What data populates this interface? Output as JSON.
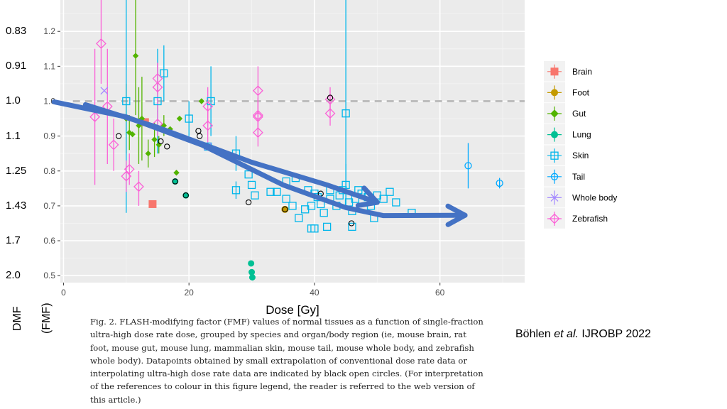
{
  "dmf": {
    "title": "DMF",
    "subtitle": "(FMF)",
    "labels": [
      {
        "text": "0.83",
        "fmf": 1.2
      },
      {
        "text": "0.91",
        "fmf": 1.1
      },
      {
        "text": "1.0",
        "fmf": 1.0
      },
      {
        "text": "1.1",
        "fmf": 0.9
      },
      {
        "text": "1.25",
        "fmf": 0.8
      },
      {
        "text": "1.43",
        "fmf": 0.7
      },
      {
        "text": "1.7",
        "fmf": 0.6
      },
      {
        "text": "2.0",
        "fmf": 0.5
      }
    ]
  },
  "caption": "Fig. 2. FLASH-modifying factor (FMF) values of normal tissues as a function of single-fraction ultra-high dose rate dose, grouped by species and organ/body region (ie, mouse brain, rat foot, mouse gut, mouse lung, mammalian skin, mouse tail, mouse whole body, and zebrafish whole body). Datapoints obtained by small extrapolation of conventional dose rate data or interpolating ultra-high dose rate data are indicated by black open circles. (For interpretation of the references to colour in this figure legend, the reader is referred to the web version of this article.)",
  "citation": {
    "author": "Böhlen ",
    "etal": "et al.",
    "journal": " IJROBP 2022"
  },
  "chart_data": {
    "type": "scatter",
    "xlabel": "Dose [Gy]",
    "ylabel": "",
    "xlim": [
      -0.5,
      73.5
    ],
    "ylim": [
      0.48,
      1.29
    ],
    "xticks": [
      0,
      20,
      40,
      60
    ],
    "yticks": [
      0.5,
      0.6,
      0.7,
      0.8,
      0.9,
      1.0,
      1.1,
      1.2
    ],
    "ytick_labels": [
      "0.5",
      "0.6",
      "0.7",
      "0.8",
      "0.9",
      "1.0",
      "1.1",
      "1.2"
    ],
    "grid": true,
    "reference_line": 1.0,
    "legend_position": "right",
    "colors": {
      "Brain": "#F8766D",
      "Foot": "#C49A00",
      "Gut": "#53B400",
      "Lung": "#00C094",
      "Skin": "#00B6EB",
      "Tail": "#00A9FF",
      "Whole body": "#A58AFF",
      "Zebrafish": "#FB61D7"
    },
    "series": [
      {
        "name": "Brain",
        "marker": "square",
        "points": [
          {
            "x": 14.2,
            "y": 0.705
          },
          {
            "x": 13.0,
            "y": 0.94
          }
        ]
      },
      {
        "name": "Foot",
        "marker": "circle",
        "points": [
          {
            "x": 35.3,
            "y": 0.69
          }
        ]
      },
      {
        "name": "Gut",
        "marker": "diamond",
        "points": [
          {
            "x": 11.5,
            "y": 1.13,
            "lo": 0.96,
            "hi": 1.3
          },
          {
            "x": 10.0,
            "y": 0.95,
            "lo": 0.85,
            "hi": 1.05
          },
          {
            "x": 10.5,
            "y": 0.91,
            "lo": 0.86,
            "hi": 0.96
          },
          {
            "x": 12.0,
            "y": 0.93,
            "lo": 0.82,
            "hi": 1.04
          },
          {
            "x": 12.5,
            "y": 0.95,
            "lo": 0.83,
            "hi": 1.07
          },
          {
            "x": 13.5,
            "y": 0.85,
            "lo": 0.81,
            "hi": 0.89
          },
          {
            "x": 14.5,
            "y": 0.89,
            "lo": 0.84,
            "hi": 0.94
          },
          {
            "x": 15.2,
            "y": 0.875,
            "lo": 0.85,
            "hi": 0.9
          },
          {
            "x": 16.0,
            "y": 0.93,
            "lo": 0.9,
            "hi": 0.96
          },
          {
            "x": 17.0,
            "y": 0.92
          },
          {
            "x": 18.5,
            "y": 0.95
          },
          {
            "x": 18.0,
            "y": 0.795
          },
          {
            "x": 22.0,
            "y": 1.0
          },
          {
            "x": 11.0,
            "y": 0.905
          }
        ]
      },
      {
        "name": "Lung",
        "marker": "circle",
        "points": [
          {
            "x": 17.8,
            "y": 0.77
          },
          {
            "x": 19.5,
            "y": 0.73
          },
          {
            "x": 29.9,
            "y": 0.535
          },
          {
            "x": 30.0,
            "y": 0.51
          },
          {
            "x": 30.1,
            "y": 0.495
          }
        ]
      },
      {
        "name": "Skin",
        "marker": "square",
        "points": [
          {
            "x": 10.0,
            "y": 1.0,
            "lo": 0.68,
            "hi": 1.3
          },
          {
            "x": 15.0,
            "y": 1.0,
            "lo": 0.85,
            "hi": 1.15
          },
          {
            "x": 16.0,
            "y": 1.08,
            "lo": 1.0,
            "hi": 1.16
          },
          {
            "x": 20.0,
            "y": 0.95,
            "lo": 0.9,
            "hi": 1.0
          },
          {
            "x": 23.5,
            "y": 1.0,
            "lo": 0.9,
            "hi": 1.1
          },
          {
            "x": 23.0,
            "y": 0.87
          },
          {
            "x": 27.5,
            "y": 0.85,
            "lo": 0.8,
            "hi": 0.9
          },
          {
            "x": 27.5,
            "y": 0.745,
            "lo": 0.72,
            "hi": 0.77
          },
          {
            "x": 29.5,
            "y": 0.79
          },
          {
            "x": 30.0,
            "y": 0.76
          },
          {
            "x": 30.5,
            "y": 0.73
          },
          {
            "x": 33.0,
            "y": 0.74
          },
          {
            "x": 34.0,
            "y": 0.74
          },
          {
            "x": 35.5,
            "y": 0.72
          },
          {
            "x": 35.5,
            "y": 0.77
          },
          {
            "x": 36.5,
            "y": 0.7
          },
          {
            "x": 37.0,
            "y": 0.78
          },
          {
            "x": 37.5,
            "y": 0.665
          },
          {
            "x": 38.5,
            "y": 0.69
          },
          {
            "x": 39.0,
            "y": 0.745
          },
          {
            "x": 39.5,
            "y": 0.7
          },
          {
            "x": 40.0,
            "y": 0.735
          },
          {
            "x": 40.5,
            "y": 0.725
          },
          {
            "x": 41.0,
            "y": 0.705
          },
          {
            "x": 41.5,
            "y": 0.68
          },
          {
            "x": 42.5,
            "y": 0.745
          },
          {
            "x": 42.5,
            "y": 0.72
          },
          {
            "x": 43.5,
            "y": 0.7
          },
          {
            "x": 44.0,
            "y": 0.73
          },
          {
            "x": 44.5,
            "y": 0.745
          },
          {
            "x": 45.0,
            "y": 0.76,
            "lo": 0.7,
            "hi": 0.82
          },
          {
            "x": 45.0,
            "y": 0.965,
            "lo": 0.7,
            "hi": 1.3
          },
          {
            "x": 45.5,
            "y": 0.71
          },
          {
            "x": 46.0,
            "y": 0.685
          },
          {
            "x": 46.5,
            "y": 0.72
          },
          {
            "x": 47.0,
            "y": 0.745
          },
          {
            "x": 47.5,
            "y": 0.735
          },
          {
            "x": 48.5,
            "y": 0.725
          },
          {
            "x": 49.0,
            "y": 0.7
          },
          {
            "x": 50.0,
            "y": 0.73
          },
          {
            "x": 49.5,
            "y": 0.665
          },
          {
            "x": 51.0,
            "y": 0.72
          },
          {
            "x": 53.0,
            "y": 0.71
          },
          {
            "x": 55.5,
            "y": 0.68
          },
          {
            "x": 52.0,
            "y": 0.74
          },
          {
            "x": 46.0,
            "y": 0.64
          },
          {
            "x": 40.0,
            "y": 0.635
          },
          {
            "x": 39.5,
            "y": 0.635
          },
          {
            "x": 42.0,
            "y": 0.64
          }
        ]
      },
      {
        "name": "Tail",
        "marker": "circle",
        "points": [
          {
            "x": 64.5,
            "y": 0.815,
            "lo": 0.75,
            "hi": 0.88
          },
          {
            "x": 69.5,
            "y": 0.765,
            "lo": 0.75,
            "hi": 0.78
          }
        ]
      },
      {
        "name": "Whole body",
        "marker": "cross",
        "points": [
          {
            "x": 6.5,
            "y": 1.03
          },
          {
            "x": 23.0,
            "y": 0.87
          }
        ]
      },
      {
        "name": "Zebrafish",
        "marker": "diamond",
        "points": [
          {
            "x": 5.0,
            "y": 0.955,
            "lo": 0.76,
            "hi": 1.15
          },
          {
            "x": 6.0,
            "y": 1.165,
            "lo": 1.05,
            "hi": 1.29
          },
          {
            "x": 7.0,
            "y": 0.985,
            "lo": 0.82,
            "hi": 1.15
          },
          {
            "x": 8.0,
            "y": 0.875,
            "lo": 0.8,
            "hi": 0.95
          },
          {
            "x": 10.0,
            "y": 0.785,
            "lo": 0.74,
            "hi": 0.83
          },
          {
            "x": 10.5,
            "y": 0.805,
            "lo": 0.76,
            "hi": 0.85
          },
          {
            "x": 12.0,
            "y": 0.755,
            "lo": 0.7,
            "hi": 0.8
          },
          {
            "x": 15.0,
            "y": 1.065,
            "lo": 1.02,
            "hi": 1.11
          },
          {
            "x": 15.0,
            "y": 1.04,
            "lo": 0.97,
            "hi": 1.11
          },
          {
            "x": 15.0,
            "y": 0.935,
            "lo": 0.9,
            "hi": 0.97
          },
          {
            "x": 23.0,
            "y": 0.985,
            "lo": 0.93,
            "hi": 1.04
          },
          {
            "x": 23.0,
            "y": 0.93,
            "lo": 0.88,
            "hi": 0.98
          },
          {
            "x": 31.0,
            "y": 1.03,
            "lo": 0.9,
            "hi": 1.1
          },
          {
            "x": 31.0,
            "y": 0.96,
            "lo": 0.92,
            "hi": 1.0
          },
          {
            "x": 31.0,
            "y": 0.955,
            "lo": 0.9,
            "hi": 1.01
          },
          {
            "x": 31.0,
            "y": 0.91,
            "lo": 0.87,
            "hi": 0.95
          },
          {
            "x": 42.5,
            "y": 1.005,
            "lo": 0.97,
            "hi": 1.04
          },
          {
            "x": 42.5,
            "y": 0.965,
            "lo": 0.93,
            "hi": 1.0
          }
        ]
      }
    ],
    "open_circle_points": [
      {
        "x": 8.8,
        "y": 0.9
      },
      {
        "x": 15.5,
        "y": 0.885
      },
      {
        "x": 16.5,
        "y": 0.87
      },
      {
        "x": 17.8,
        "y": 0.77
      },
      {
        "x": 19.5,
        "y": 0.73
      },
      {
        "x": 21.5,
        "y": 0.915
      },
      {
        "x": 21.7,
        "y": 0.9
      },
      {
        "x": 29.5,
        "y": 0.71
      },
      {
        "x": 41.0,
        "y": 0.735
      },
      {
        "x": 42.5,
        "y": 1.01
      },
      {
        "x": 45.9,
        "y": 0.65
      },
      {
        "x": 35.3,
        "y": 0.69
      }
    ],
    "trend_arrows": [
      {
        "points": [
          [
            -1.5,
            0.998
          ],
          [
            10,
            0.955
          ],
          [
            22,
            0.875
          ],
          [
            35,
            0.76
          ],
          [
            45,
            0.695
          ],
          [
            51,
            0.672
          ],
          [
            64,
            0.673
          ]
        ]
      },
      {
        "points": [
          [
            3.5,
            0.99
          ],
          [
            15,
            0.925
          ],
          [
            30,
            0.825
          ],
          [
            42,
            0.76
          ],
          [
            50,
            0.71
          ]
        ]
      }
    ]
  }
}
